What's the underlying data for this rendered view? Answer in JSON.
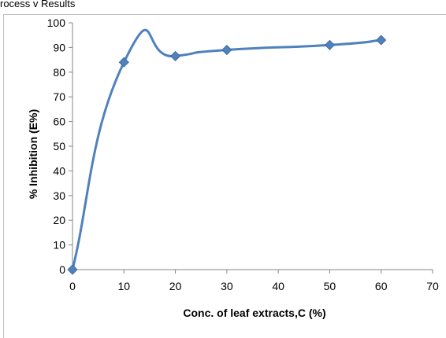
{
  "header_fragment": "rocess v Results",
  "chart_data": {
    "type": "line",
    "xlabel": "Conc. of leaf extracts,C (%)",
    "ylabel": "% Inhibition (E%)",
    "xlim": [
      0,
      70
    ],
    "ylim": [
      0,
      100
    ],
    "x_ticks": [
      "0",
      "10",
      "20",
      "30",
      "40",
      "50",
      "60",
      "70"
    ],
    "y_ticks": [
      "0",
      "10",
      "20",
      "30",
      "40",
      "50",
      "60",
      "70",
      "80",
      "90",
      "100"
    ],
    "grid": false,
    "legend": "none",
    "smooth": true,
    "marker": "diamond",
    "series": [
      {
        "color": "#4f81bd",
        "x": [
          0,
          10,
          20,
          30,
          50,
          60
        ],
        "y": [
          0,
          84,
          86.5,
          89,
          91,
          93
        ]
      }
    ]
  }
}
